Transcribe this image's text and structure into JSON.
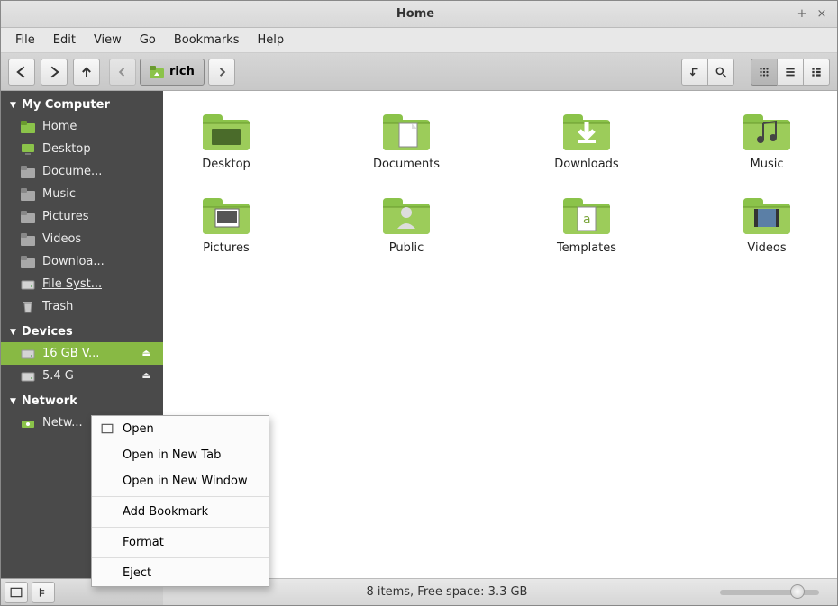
{
  "window": {
    "title": "Home"
  },
  "menubar": [
    "File",
    "Edit",
    "View",
    "Go",
    "Bookmarks",
    "Help"
  ],
  "breadcrumb": {
    "current": "rich"
  },
  "colors": {
    "accent": "#88b944",
    "sidebar_bg": "#4a4a4a",
    "folder_green": "#8bc34a",
    "folder_shadow": "#6a9a2f"
  },
  "sidebar": {
    "sections": [
      {
        "title": "My Computer",
        "items": [
          {
            "label": "Home",
            "icon": "home"
          },
          {
            "label": "Desktop",
            "icon": "desktop"
          },
          {
            "label": "Docume...",
            "icon": "folder"
          },
          {
            "label": "Music",
            "icon": "folder"
          },
          {
            "label": "Pictures",
            "icon": "folder"
          },
          {
            "label": "Videos",
            "icon": "folder"
          },
          {
            "label": "Downloa...",
            "icon": "folder"
          },
          {
            "label": "File Syst...",
            "icon": "disk",
            "underline": true
          },
          {
            "label": "Trash",
            "icon": "trash"
          }
        ]
      },
      {
        "title": "Devices",
        "items": [
          {
            "label": "16 GB V...",
            "icon": "disk",
            "selected": true,
            "eject": true
          },
          {
            "label": "5.4 G",
            "icon": "disk",
            "eject": true
          }
        ]
      },
      {
        "title": "Network",
        "items": [
          {
            "label": "Netw...",
            "icon": "network"
          }
        ]
      }
    ]
  },
  "folders": [
    {
      "label": "Desktop",
      "variant": "desktop"
    },
    {
      "label": "Documents",
      "variant": "documents"
    },
    {
      "label": "Downloads",
      "variant": "downloads"
    },
    {
      "label": "Music",
      "variant": "music"
    },
    {
      "label": "Pictures",
      "variant": "pictures"
    },
    {
      "label": "Public",
      "variant": "public"
    },
    {
      "label": "Templates",
      "variant": "templates"
    },
    {
      "label": "Videos",
      "variant": "videos"
    }
  ],
  "context_menu": [
    {
      "label": "Open",
      "icon": true
    },
    {
      "label": "Open in New Tab"
    },
    {
      "label": "Open in New Window"
    },
    {
      "sep": true
    },
    {
      "label": "Add Bookmark"
    },
    {
      "sep": true
    },
    {
      "label": "Format"
    },
    {
      "sep": true
    },
    {
      "label": "Eject"
    }
  ],
  "status": {
    "text": "8 items, Free space: 3.3 GB"
  }
}
